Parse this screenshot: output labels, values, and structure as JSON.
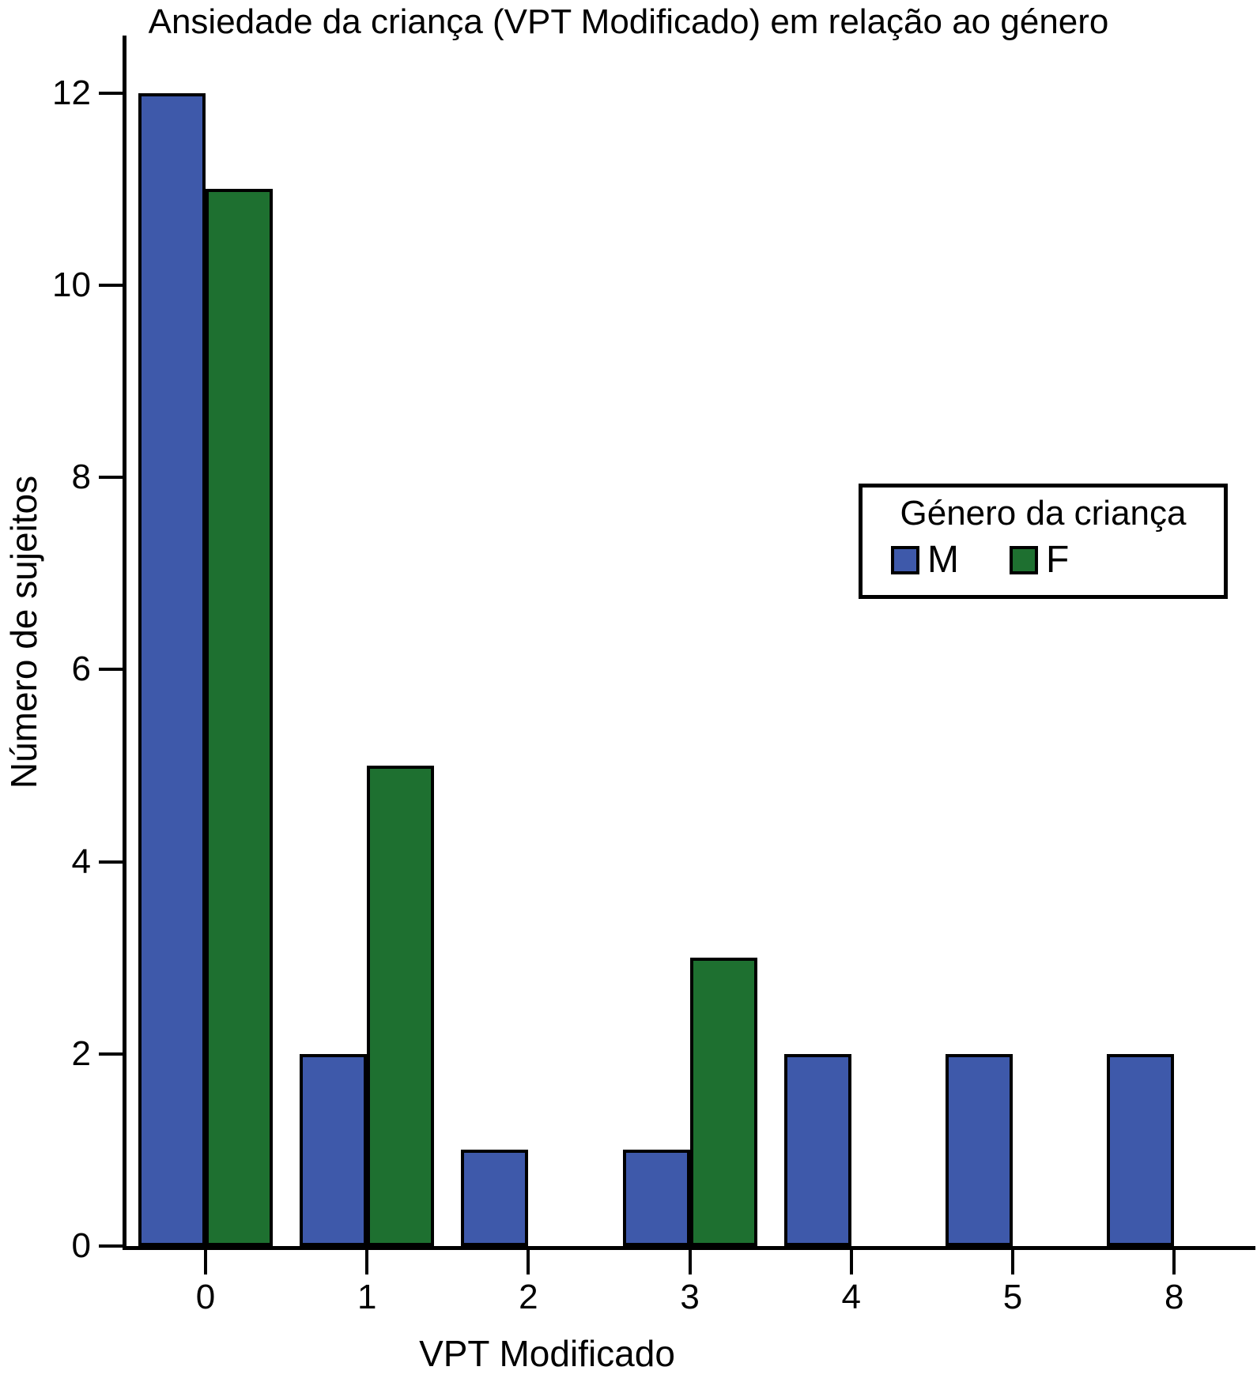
{
  "chart_data": {
    "type": "bar",
    "title": "Ansiedade da criança (VPT Modificado) em relação ao género",
    "xlabel": "VPT Modificado",
    "ylabel": "Número de sujeitos",
    "categories": [
      "0",
      "1",
      "2",
      "3",
      "4",
      "5",
      "8"
    ],
    "series": [
      {
        "name": "M",
        "color": "#3E59AA",
        "values": [
          12,
          2,
          1,
          1,
          2,
          2,
          2
        ]
      },
      {
        "name": "F",
        "color": "#1E7030",
        "values": [
          11,
          5,
          0,
          3,
          0,
          0,
          0
        ]
      }
    ],
    "ylim": [
      0,
      12
    ],
    "yticks": [
      0,
      2,
      4,
      6,
      8,
      10,
      12
    ],
    "legend_title": "Género da criança",
    "legend_position": "upper right",
    "grid": false,
    "axis_color": "#000000",
    "background_color": "#FFFFFF"
  }
}
